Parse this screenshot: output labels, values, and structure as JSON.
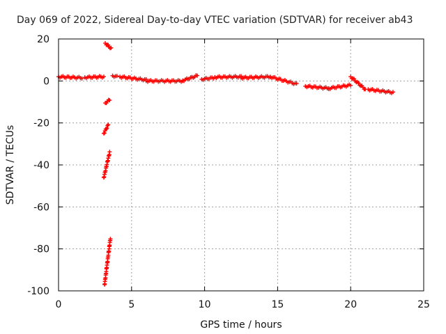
{
  "chart_data": {
    "type": "scatter",
    "title": "Day 069 of 2022, Sidereal Day-to-day VTEC variation (SDTVAR) for receiver ab43",
    "xlabel": "GPS time / hours",
    "ylabel": "SDTVAR / TECUs",
    "xlim": [
      0,
      25
    ],
    "ylim": [
      -100,
      20
    ],
    "xticks": [
      0,
      5,
      10,
      15,
      20,
      25
    ],
    "yticks": [
      -100,
      -80,
      -60,
      -40,
      -20,
      0,
      20
    ],
    "xtick_labels": [
      "0",
      "5",
      "10",
      "15",
      "20",
      "25"
    ],
    "ytick_labels": [
      "-100",
      "-80",
      "-60",
      "-40",
      "-20",
      "0",
      "20"
    ],
    "grid": true,
    "marker": "plus",
    "series": [
      {
        "name": "SDTVAR",
        "color": "#ff0000",
        "segments": [
          {
            "x": [
              0.0,
              1.6
            ],
            "y_start": 2.0,
            "y_end": 1.5
          },
          {
            "x": [
              1.8,
              3.1
            ],
            "y_start": 1.7,
            "y_end": 2.0
          },
          {
            "x": [
              3.2,
              3.6
            ],
            "y_start": 18.0,
            "y_end": 15.5
          },
          {
            "x": [
              3.2,
              3.5
            ],
            "y_start": -10.5,
            "y_end": -9.0
          },
          {
            "x": [
              3.1,
              3.4
            ],
            "y_start": -25.0,
            "y_end": -21.0
          },
          {
            "x": [
              3.1,
              3.5
            ],
            "y_start": -46.0,
            "y_end": -34.0
          },
          {
            "x": [
              3.15,
              3.55
            ],
            "y_start": -97.0,
            "y_end": -75.0
          },
          {
            "x": [
              3.7,
              4.0
            ],
            "y_start": 2.5,
            "y_end": 2.0
          },
          {
            "x": [
              4.2,
              6.0
            ],
            "y_start": 2.0,
            "y_end": 0.5
          },
          {
            "x": [
              6.0,
              8.5
            ],
            "y_start": 0.0,
            "y_end": 0.0
          },
          {
            "x": [
              8.5,
              9.5
            ],
            "y_start": 0.2,
            "y_end": 2.5
          },
          {
            "x": [
              9.8,
              10.6
            ],
            "y_start": 0.8,
            "y_end": 1.5
          },
          {
            "x": [
              10.7,
              12.5
            ],
            "y_start": 1.8,
            "y_end": 2.0
          },
          {
            "x": [
              12.5,
              14.5
            ],
            "y_start": 1.5,
            "y_end": 2.0
          },
          {
            "x": [
              14.5,
              16.3
            ],
            "y_start": 2.0,
            "y_end": -1.5
          },
          {
            "x": [
              16.9,
              18.5
            ],
            "y_start": -2.5,
            "y_end": -3.5
          },
          {
            "x": [
              18.5,
              20.0
            ],
            "y_start": -3.5,
            "y_end": -2.0
          },
          {
            "x": [
              20.0,
              21.0
            ],
            "y_start": 2.0,
            "y_end": -4.0
          },
          {
            "x": [
              21.2,
              22.9
            ],
            "y_start": -4.0,
            "y_end": -5.5
          }
        ]
      }
    ]
  }
}
